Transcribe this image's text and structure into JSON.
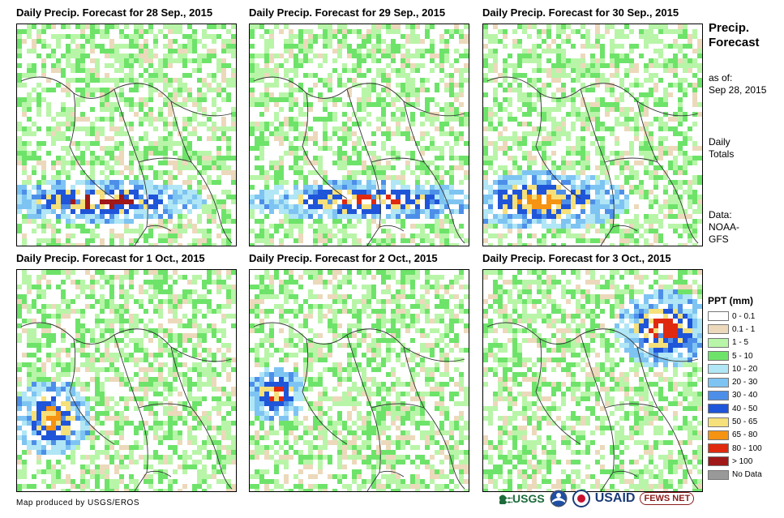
{
  "panels": [
    {
      "title": "Daily Precip. Forecast for 28 Sep., 2015"
    },
    {
      "title": "Daily Precip. Forecast for 29 Sep., 2015"
    },
    {
      "title": "Daily Precip. Forecast for 30 Sep., 2015"
    },
    {
      "title": "Daily Precip. Forecast for 1 Oct., 2015"
    },
    {
      "title": "Daily Precip. Forecast for 2 Oct., 2015"
    },
    {
      "title": "Daily Precip. Forecast for 3 Oct., 2015"
    }
  ],
  "sidebar": {
    "heading_line1": "Precip.",
    "heading_line2": "Forecast",
    "asof_label": "as of:",
    "asof_date": "Sep 28, 2015",
    "totals_line1": "Daily",
    "totals_line2": "Totals",
    "data_line1": "Data:",
    "data_line2": "NOAA-",
    "data_line3": "GFS"
  },
  "legend": {
    "title": "PPT (mm)",
    "items": [
      {
        "label": "0 - 0.1",
        "color": "#ffffff"
      },
      {
        "label": "0.1 - 1",
        "color": "#ecd9bb"
      },
      {
        "label": "1 - 5",
        "color": "#b8f5a8"
      },
      {
        "label": "5 - 10",
        "color": "#6ee36a"
      },
      {
        "label": "10 - 20",
        "color": "#b0e6f5"
      },
      {
        "label": "20 - 30",
        "color": "#7ec4f2"
      },
      {
        "label": "30 - 40",
        "color": "#4d8fe8"
      },
      {
        "label": "40 - 50",
        "color": "#1f55d9"
      },
      {
        "label": "50 - 65",
        "color": "#f6e07a"
      },
      {
        "label": "65 - 80",
        "color": "#f59312"
      },
      {
        "label": "80 - 100",
        "color": "#e02a10"
      },
      {
        "label": "> 100",
        "color": "#a01818"
      },
      {
        "label": "No Data",
        "color": "#999999"
      }
    ]
  },
  "footer": {
    "credit": "Map produced by USGS/EROS",
    "logo_usgs": "USGS",
    "logo_usaid": "USAID",
    "logo_fews": "FEWS NET"
  }
}
